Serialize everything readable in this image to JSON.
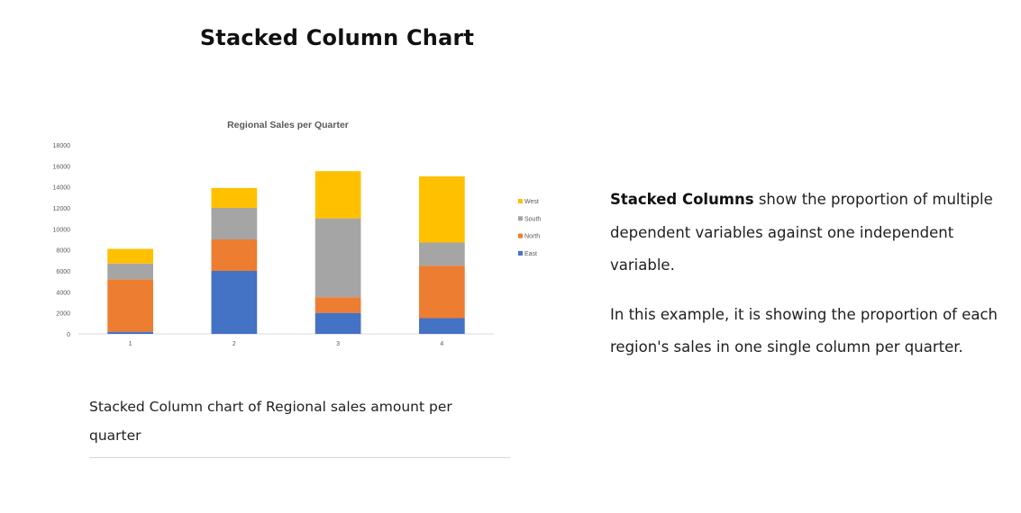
{
  "page": {
    "title": "Stacked Column Chart",
    "caption": "Stacked Column chart of Regional sales amount per quarter",
    "description": {
      "p1_bold": "Stacked Columns",
      "p1_rest": " show the proportion of multiple dependent variables against one independent variable.",
      "p2": "In this example,  it is showing the proportion of each region's sales in one single column per quarter."
    }
  },
  "chart_data": {
    "type": "bar",
    "stacked": true,
    "title": "Regional Sales per Quarter",
    "xlabel": "",
    "ylabel": "",
    "categories": [
      "1",
      "2",
      "3",
      "4"
    ],
    "ylim": [
      0,
      18000
    ],
    "yticks": [
      0,
      2000,
      4000,
      6000,
      8000,
      10000,
      12000,
      14000,
      16000,
      18000
    ],
    "grid": false,
    "legend_position": "right",
    "series": [
      {
        "name": "East",
        "color": "#4472c4",
        "values": [
          200,
          6000,
          2000,
          1500
        ]
      },
      {
        "name": "North",
        "color": "#ed7d31",
        "values": [
          5000,
          3000,
          1500,
          5000
        ]
      },
      {
        "name": "South",
        "color": "#a5a5a5",
        "values": [
          1500,
          3000,
          7500,
          2200
        ]
      },
      {
        "name": "West",
        "color": "#ffc000",
        "values": [
          1400,
          1900,
          4500,
          6300
        ]
      }
    ],
    "legend_order": [
      "West",
      "South",
      "North",
      "East"
    ]
  }
}
